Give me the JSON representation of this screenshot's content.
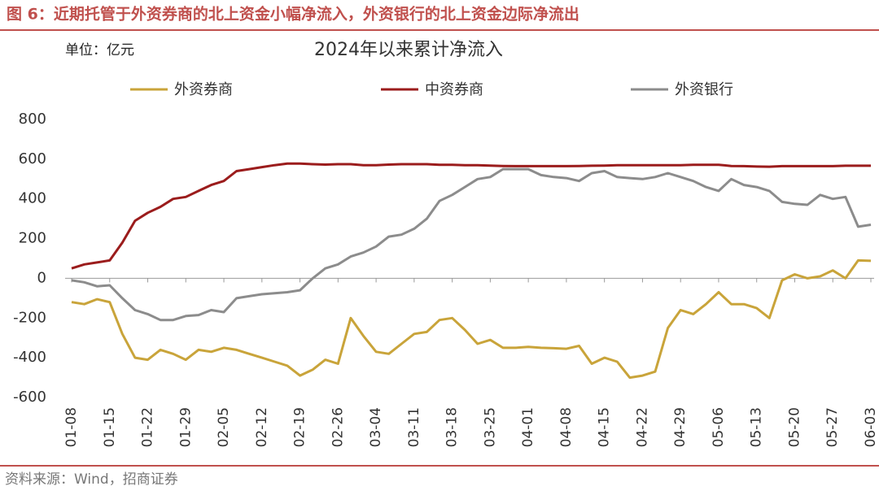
{
  "header": {
    "title": "图 6：近期托管于外资券商的北上资金小幅净流入，外资银行的北上资金边际净流出",
    "unit": "单位：亿元"
  },
  "chart_data": {
    "type": "line",
    "title": "2024年以来累计净流入",
    "categories": [
      "01-08",
      null,
      null,
      "01-15",
      null,
      null,
      "01-22",
      null,
      null,
      "01-29",
      null,
      null,
      "02-05",
      null,
      null,
      "02-12",
      null,
      null,
      "02-19",
      null,
      null,
      "02-26",
      null,
      null,
      "03-04",
      null,
      null,
      "03-11",
      null,
      null,
      "03-18",
      null,
      null,
      "03-25",
      null,
      null,
      "04-01",
      null,
      null,
      "04-08",
      null,
      null,
      "04-15",
      null,
      null,
      "04-22",
      null,
      null,
      "04-29",
      null,
      null,
      "05-06",
      null,
      null,
      "05-13",
      null,
      null,
      "05-20",
      null,
      null,
      "05-27",
      null,
      null,
      "06-03"
    ],
    "series": [
      {
        "name": "外资券商",
        "color": "#c9a43a",
        "values": [
          -120,
          -130,
          -105,
          -120,
          -280,
          -400,
          -410,
          -360,
          -380,
          -410,
          -360,
          -370,
          -350,
          -360,
          -380,
          -400,
          -420,
          -440,
          -490,
          -460,
          -410,
          -430,
          -200,
          -290,
          -370,
          -380,
          -330,
          -280,
          -270,
          -210,
          -200,
          -260,
          -330,
          -310,
          -350,
          -350,
          -345,
          -350,
          -352,
          -355,
          -340,
          -430,
          -400,
          -420,
          -500,
          -490,
          -470,
          -250,
          -160,
          -180,
          -130,
          -70,
          -130,
          -130,
          -150,
          -200,
          -10,
          20,
          0,
          10,
          40,
          0,
          90,
          88
        ]
      },
      {
        "name": "中资券商",
        "color": "#9b1c1c",
        "values": [
          50,
          70,
          80,
          90,
          180,
          290,
          330,
          360,
          400,
          410,
          440,
          470,
          490,
          540,
          550,
          560,
          570,
          578,
          578,
          575,
          573,
          575,
          575,
          570,
          570,
          573,
          575,
          575,
          575,
          572,
          572,
          570,
          570,
          568,
          566,
          565,
          565,
          565,
          565,
          565,
          566,
          567,
          568,
          570,
          570,
          570,
          570,
          570,
          570,
          572,
          572,
          572,
          566,
          565,
          563,
          562,
          565,
          565,
          565,
          565,
          565,
          567,
          567,
          567
        ]
      },
      {
        "name": "外资银行",
        "color": "#8c8c8c",
        "values": [
          -10,
          -20,
          -40,
          -35,
          -100,
          -160,
          -180,
          -210,
          -210,
          -190,
          -185,
          -160,
          -170,
          -100,
          -90,
          -80,
          -75,
          -70,
          -60,
          0,
          50,
          70,
          110,
          130,
          160,
          210,
          220,
          250,
          300,
          390,
          420,
          460,
          500,
          510,
          550,
          550,
          550,
          520,
          510,
          505,
          490,
          530,
          540,
          510,
          505,
          500,
          510,
          530,
          510,
          490,
          460,
          440,
          500,
          470,
          460,
          440,
          385,
          375,
          370,
          420,
          400,
          410,
          260,
          270
        ]
      }
    ],
    "ylim": [
      -600,
      800
    ],
    "yticks": [
      -600,
      -400,
      -200,
      0,
      200,
      400,
      600,
      800
    ]
  },
  "footer": {
    "source": "资料来源：Wind，招商证券"
  }
}
